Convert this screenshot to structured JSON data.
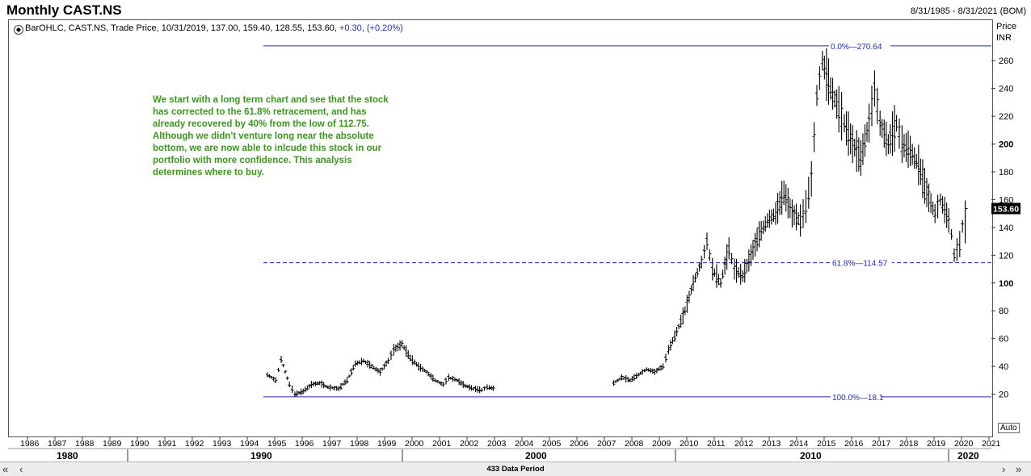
{
  "header": {
    "title": "Monthly CAST.NS",
    "date_range": "8/31/1985 - 8/31/2021 (BOM)"
  },
  "legend": {
    "icon": "bar-ohlc-icon",
    "text": "BarOHLC, CAST.NS, Trade Price, 10/31/2019, 137.00, 159.40, 128.55, 153.60,",
    "change": "+0.30, (+0.20%)"
  },
  "price_axis": {
    "label_line1": "Price",
    "label_line2": "INR",
    "last_price": "153.60",
    "auto_button": "Auto"
  },
  "annotation": "We start with a long term chart and see that the stock has corrected to the 61.8% retracement, and has already recovered by 40% from the low of 112.75. Although we didn't venture long near the absolute bottom, we are now able to inlcude this stock in our portfolio with more confidence. This analysis determines where to buy.",
  "fib_levels": [
    {
      "label": "0.0%",
      "value": "270.64",
      "price": 270.64,
      "style": "solid"
    },
    {
      "label": "61.8%",
      "value": "114.57",
      "price": 114.57,
      "style": "dashed"
    },
    {
      "label": "100.0%",
      "value": "18.1",
      "price": 18.1,
      "style": "solid"
    }
  ],
  "scrollbar": {
    "label": "433 Data Period",
    "left_icon": "double-chevron-left-icon",
    "right_icon": "double-chevron-right-icon"
  },
  "colors": {
    "annotation": "#3a9a1a",
    "fib_line": "#1f2dbd",
    "bars": "#000000",
    "last_price_bg": "#000000"
  },
  "chart_data": {
    "type": "bar",
    "subtype": "ohlc",
    "title": "Monthly CAST.NS",
    "ylabel": "Price INR",
    "ylim": [
      0,
      280
    ],
    "y_ticks": [
      20,
      40,
      60,
      80,
      100,
      120,
      140,
      160,
      180,
      200,
      220,
      240,
      260
    ],
    "x_years": [
      "1986",
      "1987",
      "1988",
      "1989",
      "1990",
      "1991",
      "1992",
      "1993",
      "1994",
      "1995",
      "1996",
      "1997",
      "1998",
      "1999",
      "2000",
      "2001",
      "2002",
      "2003",
      "2004",
      "2005",
      "2006",
      "2007",
      "2008",
      "2009",
      "2010",
      "2011",
      "2012",
      "2013",
      "2014",
      "2015",
      "2016",
      "2017",
      "2018",
      "2019",
      "2020",
      "2021"
    ],
    "x_decades": [
      "1980",
      "1990",
      "2000",
      "2010",
      "2020"
    ],
    "grid": false,
    "series": [
      {
        "points": [
          [
            1995.0,
            34
          ],
          [
            1995.3,
            30
          ],
          [
            1995.5,
            45
          ],
          [
            1995.8,
            27
          ],
          [
            1996.0,
            20
          ],
          [
            1996.3,
            22
          ],
          [
            1996.6,
            27
          ],
          [
            1996.9,
            28
          ],
          [
            1997.2,
            25
          ],
          [
            1997.6,
            24
          ],
          [
            1997.9,
            30
          ],
          [
            1998.2,
            42
          ],
          [
            1998.5,
            44
          ],
          [
            1998.8,
            40
          ],
          [
            1999.1,
            36
          ],
          [
            1999.4,
            44
          ],
          [
            1999.6,
            52
          ],
          [
            1999.9,
            56
          ],
          [
            2000.2,
            46
          ],
          [
            2000.5,
            40
          ],
          [
            2000.8,
            36
          ],
          [
            2001.1,
            30
          ],
          [
            2001.4,
            27
          ],
          [
            2001.6,
            32
          ],
          [
            2001.9,
            30
          ],
          [
            2002.2,
            26
          ],
          [
            2002.5,
            24
          ],
          [
            2002.8,
            23
          ],
          [
            2003.0,
            25
          ],
          [
            2003.3,
            24
          ],
          [
            2007.6,
            28
          ],
          [
            2007.9,
            32
          ],
          [
            2008.2,
            30
          ],
          [
            2008.5,
            34
          ],
          [
            2008.8,
            38
          ],
          [
            2009.1,
            36
          ],
          [
            2009.4,
            40
          ],
          [
            2009.6,
            52
          ],
          [
            2009.9,
            65
          ],
          [
            2010.2,
            80
          ],
          [
            2010.5,
            100
          ],
          [
            2010.8,
            115
          ],
          [
            2011.0,
            130
          ],
          [
            2011.2,
            110
          ],
          [
            2011.5,
            100
          ],
          [
            2011.8,
            125
          ],
          [
            2012.0,
            110
          ],
          [
            2012.3,
            105
          ],
          [
            2012.6,
            120
          ],
          [
            2012.9,
            135
          ],
          [
            2013.2,
            145
          ],
          [
            2013.5,
            150
          ],
          [
            2013.8,
            165
          ],
          [
            2014.1,
            150
          ],
          [
            2014.4,
            145
          ],
          [
            2014.6,
            155
          ],
          [
            2014.8,
            175
          ],
          [
            2015.0,
            235
          ],
          [
            2015.2,
            260
          ],
          [
            2015.5,
            240
          ],
          [
            2015.8,
            225
          ],
          [
            2016.0,
            215
          ],
          [
            2016.3,
            200
          ],
          [
            2016.6,
            190
          ],
          [
            2016.9,
            215
          ],
          [
            2017.1,
            240
          ],
          [
            2017.3,
            215
          ],
          [
            2017.6,
            200
          ],
          [
            2017.9,
            215
          ],
          [
            2018.1,
            200
          ],
          [
            2018.4,
            195
          ],
          [
            2018.7,
            185
          ],
          [
            2019.0,
            165
          ],
          [
            2019.3,
            150
          ],
          [
            2019.5,
            160
          ],
          [
            2019.8,
            145
          ],
          [
            2019.9,
            135
          ],
          [
            2020.0,
            120
          ],
          [
            2020.2,
            128
          ],
          [
            2020.4,
            153.6
          ]
        ]
      }
    ]
  }
}
